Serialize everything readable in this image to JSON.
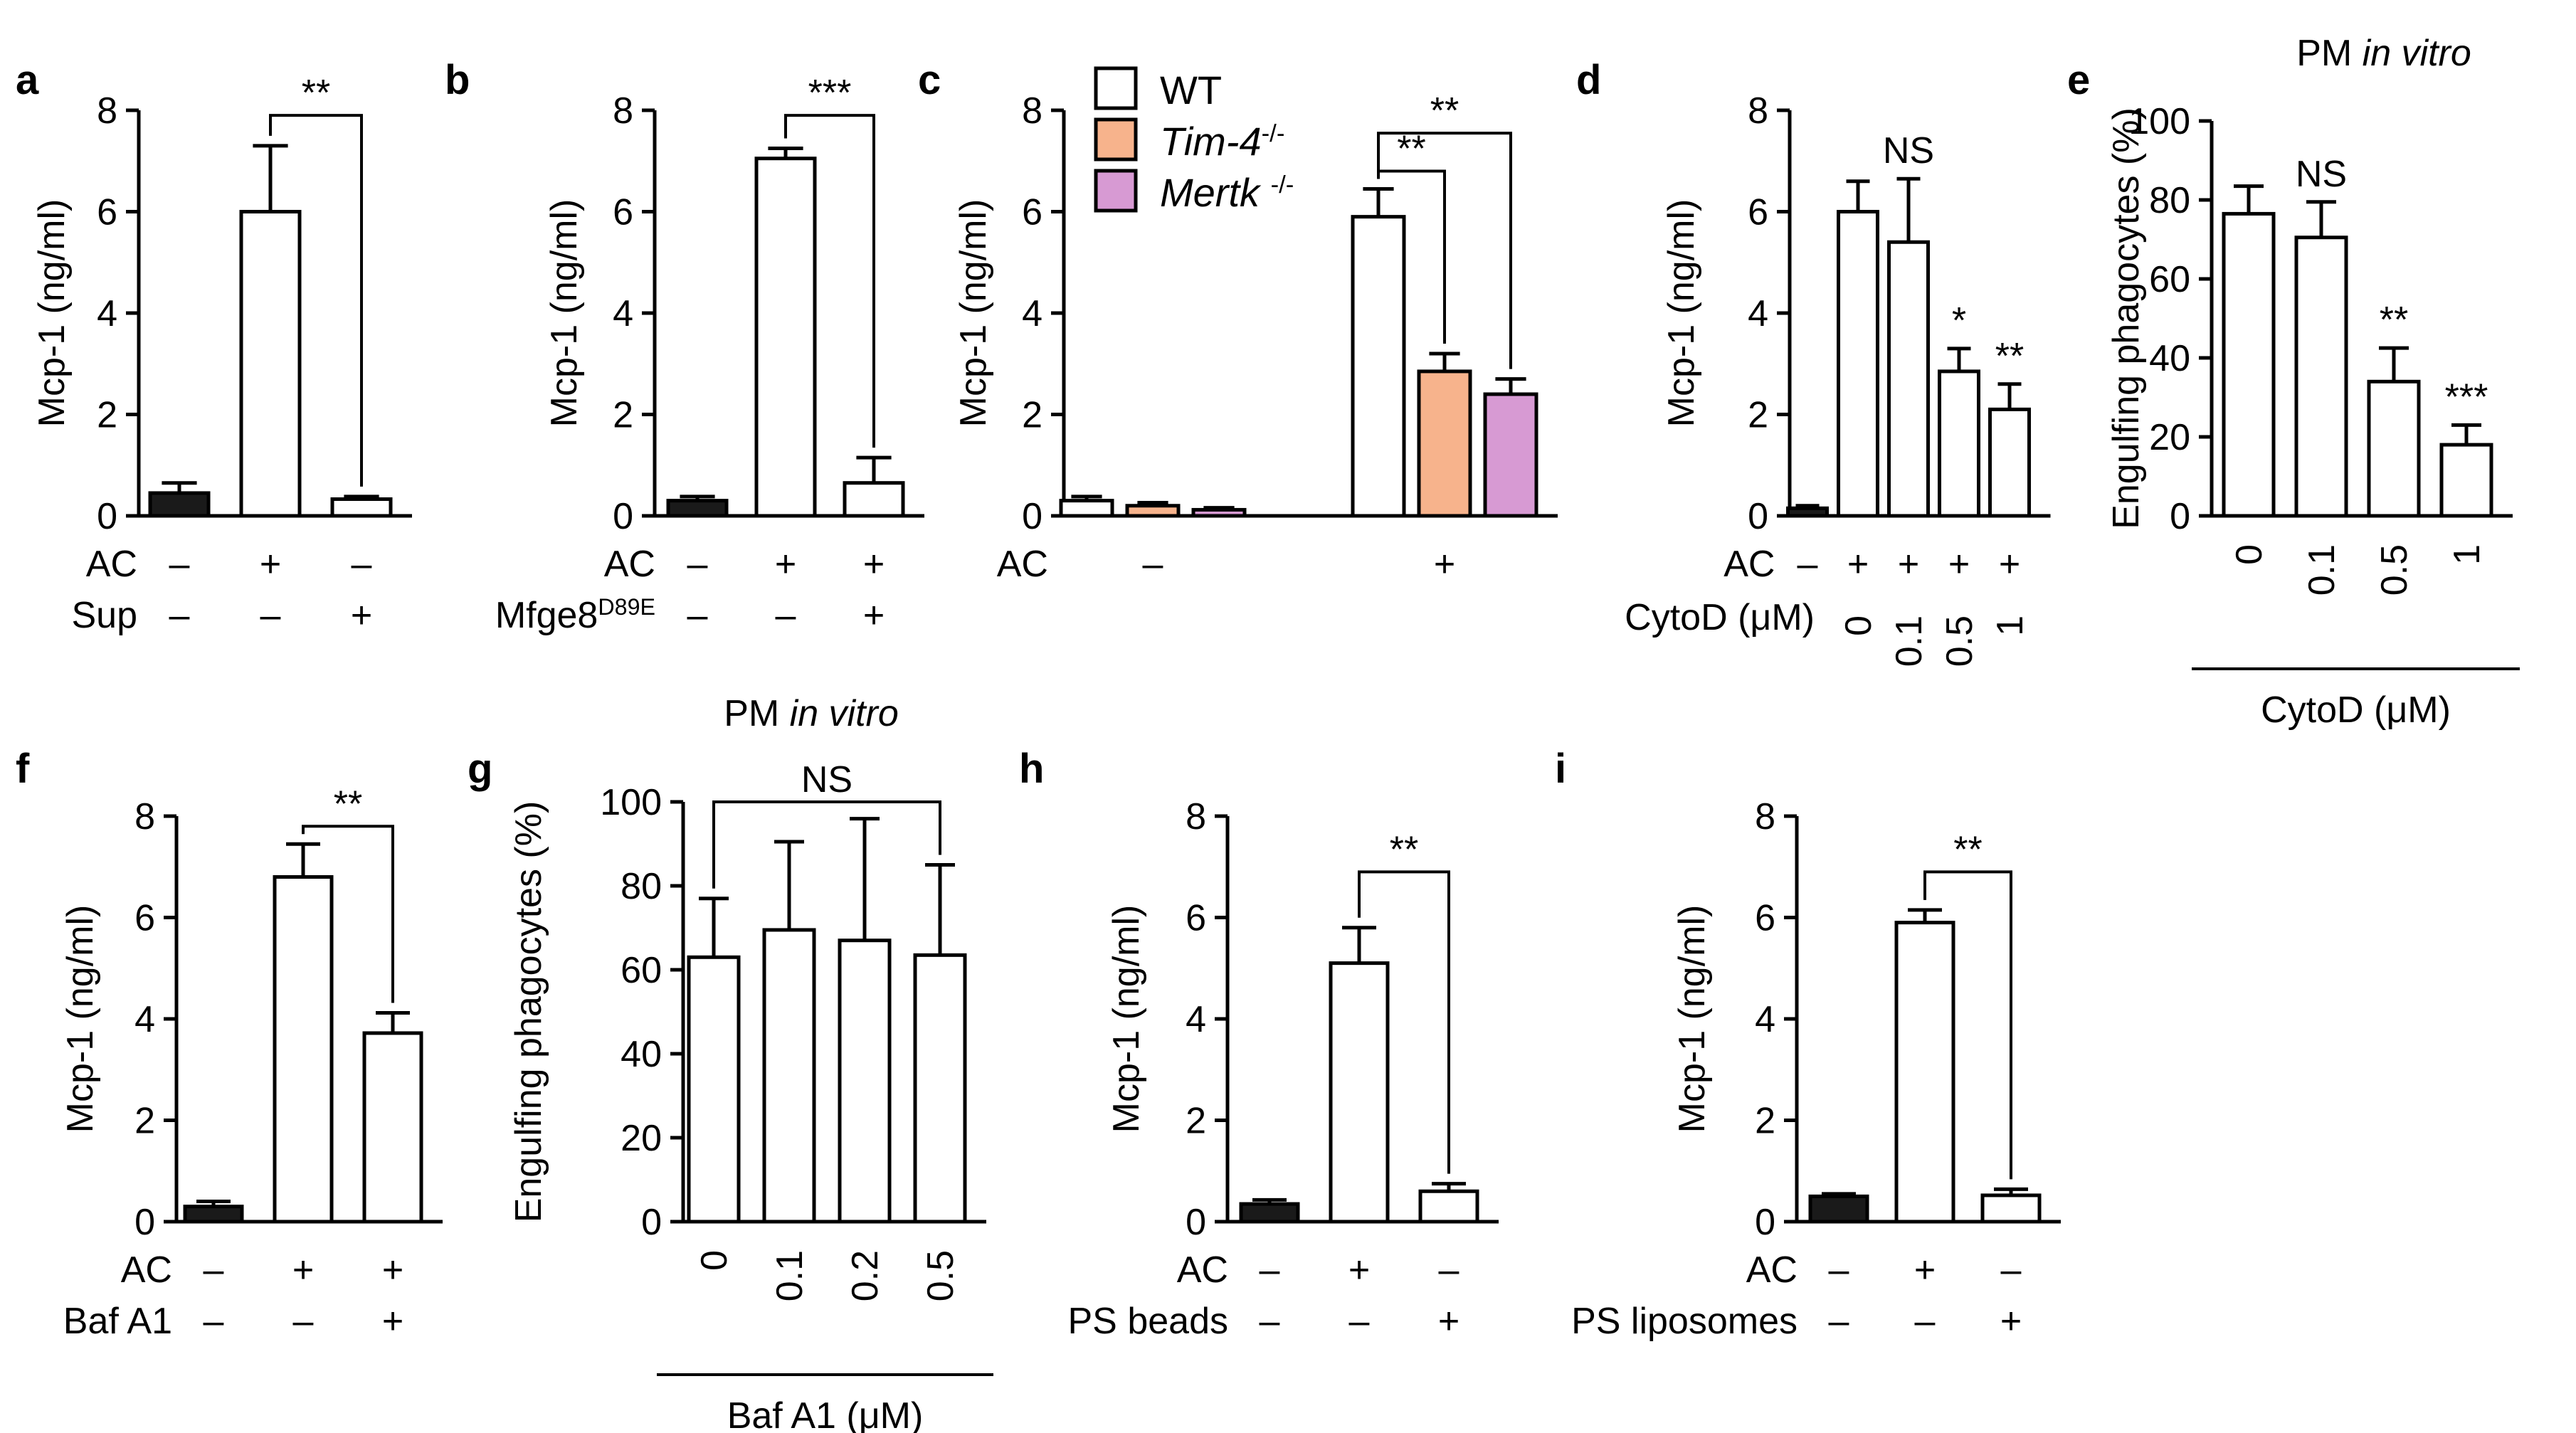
{
  "colors": {
    "black": "#1a1a1a",
    "white": "#ffffff",
    "tim4": "#f7b38c",
    "mertk": "#d79ad3",
    "axis": "#000000"
  },
  "chart_data": [
    {
      "id": "a",
      "type": "bar",
      "ylabel": "Mcp-1 (ng/ml)",
      "ylim": [
        0,
        8
      ],
      "yticks": [
        "0",
        "2",
        "4",
        "6",
        "8"
      ],
      "values": [
        0.45,
        6.0,
        0.33
      ],
      "errors": [
        0.2,
        1.3,
        0.05
      ],
      "fills": [
        "black",
        "white",
        "white"
      ],
      "cond_rows": [
        {
          "label": "AC",
          "signs": [
            "–",
            "+",
            "–"
          ]
        },
        {
          "label": "Sup",
          "signs": [
            "–",
            "–",
            "+"
          ]
        }
      ],
      "sig": [
        {
          "from": 1,
          "to": 2,
          "text": "**",
          "y": 7.9
        }
      ]
    },
    {
      "id": "b",
      "type": "bar",
      "ylabel": "Mcp-1 (ng/ml)",
      "ylim": [
        0,
        8
      ],
      "yticks": [
        "0",
        "2",
        "4",
        "6",
        "8"
      ],
      "values": [
        0.3,
        7.05,
        0.65
      ],
      "errors": [
        0.08,
        0.2,
        0.5
      ],
      "fills": [
        "black",
        "white",
        "white"
      ],
      "cond_rows": [
        {
          "label": "AC",
          "signs": [
            "–",
            "+",
            "+"
          ]
        },
        {
          "label": "Mfge8",
          "sup": "D89E",
          "signs": [
            "–",
            "–",
            "+"
          ]
        }
      ],
      "sig": [
        {
          "from": 1,
          "to": 2,
          "text": "***",
          "y": 7.9
        }
      ]
    },
    {
      "id": "c",
      "type": "bar",
      "ylabel": "Mcp-1 (ng/ml)",
      "ylim": [
        0,
        8
      ],
      "yticks": [
        "0",
        "2",
        "4",
        "6",
        "8"
      ],
      "values": [
        0.3,
        0.2,
        0.12,
        5.9,
        2.85,
        2.4
      ],
      "errors": [
        0.08,
        0.06,
        0.04,
        0.55,
        0.35,
        0.3
      ],
      "fills": [
        "white",
        "tim4",
        "mertk",
        "white",
        "tim4",
        "mertk"
      ],
      "legend": [
        {
          "label": "WT",
          "fill": "white"
        },
        {
          "label": "Tim-4",
          "sup": "-/-",
          "fill": "tim4"
        },
        {
          "label": "Mertk ",
          "sup": "-/-",
          "fill": "mertk"
        }
      ],
      "cond_rows": [
        {
          "label": "AC",
          "group_signs": [
            "–",
            "+"
          ]
        }
      ],
      "sig": [
        {
          "from": 3,
          "to": 4,
          "text": "**",
          "y": 6.8
        },
        {
          "from": 3,
          "to": 5,
          "text": "**",
          "y": 7.55
        }
      ]
    },
    {
      "id": "d",
      "type": "bar",
      "ylabel": "Mcp-1 (ng/ml)",
      "ylim": [
        0,
        8
      ],
      "yticks": [
        "0",
        "2",
        "4",
        "6",
        "8"
      ],
      "values": [
        0.15,
        6.0,
        5.4,
        2.85,
        2.1
      ],
      "errors": [
        0.05,
        0.6,
        1.25,
        0.45,
        0.5
      ],
      "fills": [
        "black",
        "white",
        "white",
        "white",
        "white"
      ],
      "bar_labels": [
        "",
        "",
        "NS",
        "*",
        "**"
      ],
      "cond_rows": [
        {
          "label": "AC",
          "signs": [
            "–",
            "+",
            "+",
            "+",
            "+"
          ]
        }
      ],
      "xunit_label": "CytoD (μM)",
      "xticks": [
        "",
        "0",
        "0.1",
        "0.5",
        "1"
      ]
    },
    {
      "id": "e",
      "type": "bar",
      "title_prefix": "PM ",
      "title_italic": "in vitro",
      "ylabel": "Engulfing phagocytes  (%)",
      "ylim": [
        0,
        100
      ],
      "yticks": [
        "0",
        "20",
        "40",
        "60",
        "80",
        "100"
      ],
      "values": [
        76.5,
        70.5,
        34.0,
        18.0
      ],
      "errors": [
        7,
        9,
        8.5,
        5
      ],
      "fills": [
        "white",
        "white",
        "white",
        "white"
      ],
      "bar_labels": [
        "",
        "NS",
        "**",
        "***"
      ],
      "xticks": [
        "0",
        "0.1",
        "0.5",
        "1"
      ],
      "xlabel": "CytoD (μM)"
    },
    {
      "id": "f",
      "type": "bar",
      "ylabel": "Mcp-1 (ng/ml)",
      "ylim": [
        0,
        8
      ],
      "yticks": [
        "0",
        "2",
        "4",
        "6",
        "8"
      ],
      "values": [
        0.3,
        6.8,
        3.72
      ],
      "errors": [
        0.1,
        0.65,
        0.4
      ],
      "fills": [
        "black",
        "white",
        "white"
      ],
      "cond_rows": [
        {
          "label": "AC",
          "signs": [
            "–",
            "+",
            "+"
          ]
        },
        {
          "label": "Baf A1",
          "signs": [
            "–",
            "–",
            "+"
          ]
        }
      ],
      "sig": [
        {
          "from": 1,
          "to": 2,
          "text": "**",
          "y": 7.8
        }
      ]
    },
    {
      "id": "g",
      "type": "bar",
      "title_prefix": "PM ",
      "title_italic": "in vitro",
      "ylabel": "Engulfing phagocytes  (%)",
      "ylim": [
        0,
        100
      ],
      "yticks": [
        "0",
        "20",
        "40",
        "60",
        "80",
        "100"
      ],
      "values": [
        63,
        69.5,
        67,
        63.5
      ],
      "errors": [
        14,
        21,
        29,
        21.5
      ],
      "fills": [
        "white",
        "white",
        "white",
        "white"
      ],
      "sig": [
        {
          "from": 0,
          "to": 3,
          "text": "NS",
          "y": 100
        }
      ],
      "xticks": [
        "0",
        "0.1",
        "0.2",
        "0.5"
      ],
      "xlabel": "Baf A1 (μM)"
    },
    {
      "id": "h",
      "type": "bar",
      "ylabel": "Mcp-1 (ng/ml)",
      "ylim": [
        0,
        8
      ],
      "yticks": [
        "0",
        "2",
        "4",
        "6",
        "8"
      ],
      "values": [
        0.35,
        5.1,
        0.6
      ],
      "errors": [
        0.08,
        0.7,
        0.15
      ],
      "fills": [
        "black",
        "white",
        "white"
      ],
      "cond_rows": [
        {
          "label": "AC",
          "signs": [
            "–",
            "+",
            "–"
          ]
        },
        {
          "label": "PS beads",
          "signs": [
            "–",
            "–",
            "+"
          ]
        }
      ],
      "sig": [
        {
          "from": 1,
          "to": 2,
          "text": "**",
          "y": 6.9
        }
      ]
    },
    {
      "id": "i",
      "type": "bar",
      "ylabel": "Mcp-1 (ng/ml)",
      "ylim": [
        0,
        8
      ],
      "yticks": [
        "0",
        "2",
        "4",
        "6",
        "8"
      ],
      "values": [
        0.5,
        5.9,
        0.52
      ],
      "errors": [
        0.05,
        0.25,
        0.12
      ],
      "fills": [
        "black",
        "white",
        "white"
      ],
      "cond_rows": [
        {
          "label": "AC",
          "signs": [
            "–",
            "+",
            "–"
          ]
        },
        {
          "label": "PS liposomes",
          "signs": [
            "–",
            "–",
            "+"
          ]
        }
      ],
      "sig": [
        {
          "from": 1,
          "to": 2,
          "text": "**",
          "y": 6.9
        }
      ]
    }
  ]
}
